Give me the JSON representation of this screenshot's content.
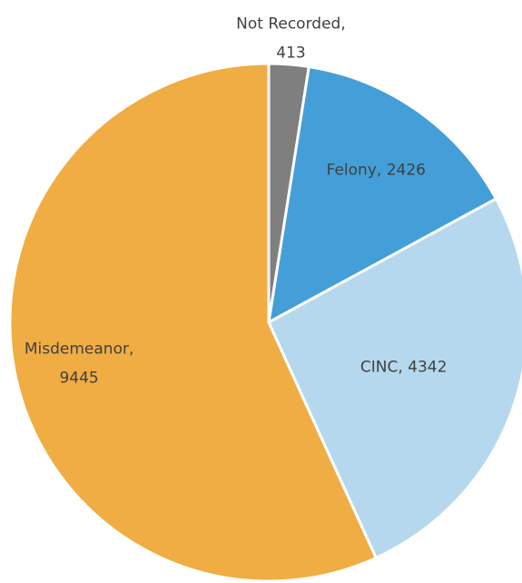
{
  "chart_data": {
    "type": "pie",
    "categories": [
      "Not Recorded",
      "Felony",
      "CINC",
      "Misdemeanor"
    ],
    "values": [
      413,
      2426,
      4342,
      9445
    ],
    "value_labels": [
      "Not Recorded, 413",
      "Felony, 2426",
      "CINC, 4342",
      "Misdemeanor, 9445"
    ],
    "colors": [
      "#7f7f7f",
      "#449fd8",
      "#b5d8ee",
      "#f0ad43"
    ]
  }
}
